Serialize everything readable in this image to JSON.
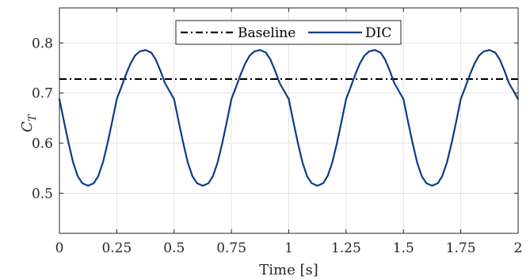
{
  "chart_data": {
    "type": "line",
    "xlabel": "Time [s]",
    "ylabel_main": "C",
    "ylabel_sub": "T",
    "xlim": [
      0,
      2
    ],
    "ylim": [
      0.42,
      0.87
    ],
    "grid": true,
    "legend_position": "top-center",
    "x_ticks": [
      0,
      0.25,
      0.5,
      0.75,
      1,
      1.25,
      1.5,
      1.75,
      2
    ],
    "x_tick_labels": [
      "0",
      "0.25",
      "0.5",
      "0.75",
      "1",
      "1.25",
      "1.5",
      "1.75",
      "2"
    ],
    "y_ticks": [
      0.5,
      0.6,
      0.7,
      0.8
    ],
    "y_tick_labels": [
      "0.5",
      "0.6",
      "0.7",
      "0.8"
    ],
    "series": [
      {
        "name": "Baseline",
        "style": "dashdot",
        "color": "#000000",
        "x": [
          0,
          2
        ],
        "y": [
          0.728,
          0.728
        ]
      },
      {
        "name": "DIC",
        "style": "solid",
        "color": "#0b3b8c",
        "x": [
          0,
          0.02,
          0.04,
          0.06,
          0.08,
          0.1,
          0.125,
          0.15,
          0.17,
          0.19,
          0.21,
          0.23,
          0.25,
          0.27,
          0.29,
          0.31,
          0.33,
          0.35,
          0.375,
          0.4,
          0.42,
          0.44,
          0.46,
          0.48,
          0.5,
          0.52,
          0.54,
          0.56,
          0.58,
          0.6,
          0.625,
          0.65,
          0.67,
          0.69,
          0.71,
          0.73,
          0.75,
          0.77,
          0.79,
          0.81,
          0.83,
          0.85,
          0.875,
          0.9,
          0.92,
          0.94,
          0.96,
          0.98,
          1.0,
          1.02,
          1.04,
          1.06,
          1.08,
          1.1,
          1.125,
          1.15,
          1.17,
          1.19,
          1.21,
          1.23,
          1.25,
          1.27,
          1.29,
          1.31,
          1.33,
          1.35,
          1.375,
          1.4,
          1.42,
          1.44,
          1.46,
          1.48,
          1.5,
          1.52,
          1.54,
          1.56,
          1.58,
          1.6,
          1.625,
          1.65,
          1.67,
          1.69,
          1.71,
          1.73,
          1.75,
          1.77,
          1.79,
          1.81,
          1.83,
          1.85,
          1.875,
          1.9,
          1.92,
          1.94,
          1.96,
          1.98,
          2.0
        ],
        "y": [
          0.688,
          0.643,
          0.6,
          0.561,
          0.534,
          0.52,
          0.515,
          0.52,
          0.535,
          0.562,
          0.6,
          0.643,
          0.688,
          0.712,
          0.737,
          0.759,
          0.775,
          0.783,
          0.786,
          0.781,
          0.767,
          0.745,
          0.72,
          0.704,
          0.688,
          0.643,
          0.6,
          0.561,
          0.534,
          0.52,
          0.515,
          0.52,
          0.535,
          0.562,
          0.6,
          0.643,
          0.688,
          0.712,
          0.737,
          0.759,
          0.775,
          0.783,
          0.786,
          0.781,
          0.767,
          0.745,
          0.72,
          0.704,
          0.688,
          0.643,
          0.6,
          0.561,
          0.534,
          0.52,
          0.515,
          0.52,
          0.535,
          0.562,
          0.6,
          0.643,
          0.688,
          0.712,
          0.737,
          0.759,
          0.775,
          0.783,
          0.786,
          0.781,
          0.767,
          0.745,
          0.72,
          0.704,
          0.688,
          0.643,
          0.6,
          0.561,
          0.534,
          0.52,
          0.515,
          0.52,
          0.535,
          0.562,
          0.6,
          0.643,
          0.688,
          0.712,
          0.737,
          0.759,
          0.775,
          0.783,
          0.786,
          0.781,
          0.767,
          0.745,
          0.72,
          0.704,
          0.688
        ]
      }
    ]
  }
}
